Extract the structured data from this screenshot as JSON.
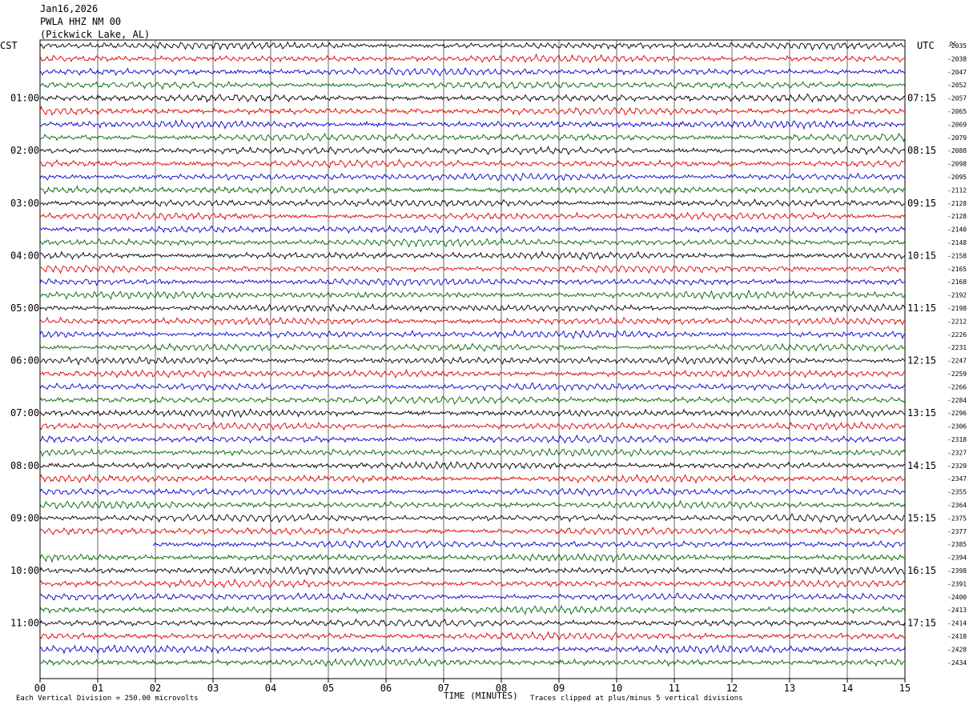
{
  "header": {
    "date": "Jan16,2026",
    "station": "PWLA HHZ NM 00",
    "location": "(Pickwick Lake, AL)"
  },
  "left_zone_label": "CST",
  "right_zone_label": "UTC",
  "footer": {
    "scale_text": "Each Vertical Division =  250.00 microvolts",
    "xaxis_title": "TIME (MINUTES)",
    "clip_text": "Traces clipped at plus/minus 5 vertical divisions"
  },
  "colors": {
    "trace_cycle": [
      "#000000",
      "#dd0000",
      "#0000cc",
      "#006400"
    ],
    "grid": "#000000"
  },
  "chart_data": {
    "type": "line",
    "title": "PWLA HHZ NM 00 (Pickwick Lake, AL) Jan16,2026",
    "xlabel": "TIME (MINUTES)",
    "x_ticks": [
      "00",
      "01",
      "02",
      "03",
      "04",
      "05",
      "06",
      "07",
      "08",
      "09",
      "10",
      "11",
      "12",
      "13",
      "14",
      "15"
    ],
    "xlim": [
      0,
      15
    ],
    "rows": 48,
    "minutes_per_row": 15,
    "cst_labels": [
      {
        "row": 4,
        "text": "01:00"
      },
      {
        "row": 8,
        "text": "02:00"
      },
      {
        "row": 12,
        "text": "03:00"
      },
      {
        "row": 16,
        "text": "04:00"
      },
      {
        "row": 20,
        "text": "05:00"
      },
      {
        "row": 24,
        "text": "06:00"
      },
      {
        "row": 28,
        "text": "07:00"
      },
      {
        "row": 32,
        "text": "08:00"
      },
      {
        "row": 36,
        "text": "09:00"
      },
      {
        "row": 40,
        "text": "10:00"
      },
      {
        "row": 44,
        "text": "11:00"
      }
    ],
    "utc_labels": [
      {
        "row": 4,
        "text": "07:15"
      },
      {
        "row": 8,
        "text": "08:15"
      },
      {
        "row": 12,
        "text": "09:15"
      },
      {
        "row": 16,
        "text": "10:15"
      },
      {
        "row": 20,
        "text": "11:15"
      },
      {
        "row": 24,
        "text": "12:15"
      },
      {
        "row": 28,
        "text": "13:15"
      },
      {
        "row": 32,
        "text": "14:15"
      },
      {
        "row": 36,
        "text": "15:15"
      },
      {
        "row": 40,
        "text": "16:15"
      },
      {
        "row": 44,
        "text": "17:15"
      }
    ],
    "row_values": [
      "-2035",
      "-2038",
      "-2047",
      "-2052",
      "-2057",
      "-2065",
      "-2069",
      "-2079",
      "-2088",
      "-2098",
      "-2095",
      "-2112",
      "-2128",
      "-2128",
      "-2140",
      "-2148",
      "-2158",
      "-2165",
      "-2168",
      "-2192",
      "-2198",
      "-2212",
      "-2226",
      "-2231",
      "-2247",
      "-2259",
      "-2266",
      "-2284",
      "-2296",
      "-2306",
      "-2318",
      "-2327",
      "-2329",
      "-2347",
      "-2355",
      "-2364",
      "-2375",
      "-2377",
      "-2385",
      "-2394",
      "-2398",
      "-2391",
      "-2400",
      "-2413",
      "-2414",
      "-2418",
      "-2428",
      "-2434"
    ],
    "gap": {
      "row": 38,
      "segments_minutes": [
        [
          0.3,
          1.95
        ],
        [
          3.7,
          4.0
        ]
      ]
    },
    "dc_label": "DC",
    "grid": true
  }
}
